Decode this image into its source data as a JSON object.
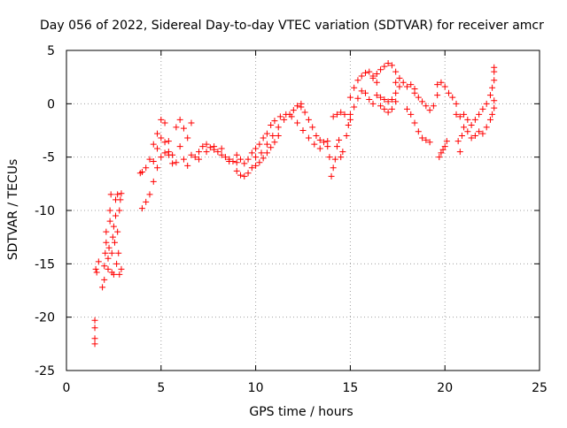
{
  "chart_data": {
    "type": "scatter",
    "title": "Day 056 of 2022, Sidereal Day-to-day VTEC variation (SDTVAR) for receiver amcr",
    "xlabel": "GPS time / hours",
    "ylabel": "SDTVAR / TECUs",
    "xlim": [
      0,
      25
    ],
    "ylim": [
      -25,
      5
    ],
    "xticks": [
      0,
      5,
      10,
      15,
      20,
      25
    ],
    "yticks": [
      -25,
      -20,
      -15,
      -10,
      -5,
      0,
      5
    ],
    "grid": true,
    "marker": "plus",
    "color": "#ff0000",
    "series": [
      {
        "name": "SDTVAR",
        "points": [
          [
            1.5,
            -22.5
          ],
          [
            1.5,
            -22.0
          ],
          [
            1.5,
            -21.0
          ],
          [
            1.5,
            -20.3
          ],
          [
            1.55,
            -15.5
          ],
          [
            1.6,
            -15.8
          ],
          [
            1.7,
            -14.8
          ],
          [
            1.9,
            -17.2
          ],
          [
            2.0,
            -16.5
          ],
          [
            2.0,
            -15.2
          ],
          [
            2.05,
            -14.0
          ],
          [
            2.1,
            -13.0
          ],
          [
            2.1,
            -12.0
          ],
          [
            2.2,
            -15.5
          ],
          [
            2.2,
            -14.5
          ],
          [
            2.25,
            -13.5
          ],
          [
            2.3,
            -11.0
          ],
          [
            2.3,
            -10.0
          ],
          [
            2.35,
            -8.5
          ],
          [
            2.4,
            -15.8
          ],
          [
            2.4,
            -14.0
          ],
          [
            2.45,
            -12.5
          ],
          [
            2.5,
            -11.5
          ],
          [
            2.5,
            -16.0
          ],
          [
            2.55,
            -13.0
          ],
          [
            2.6,
            -10.5
          ],
          [
            2.6,
            -9.0
          ],
          [
            2.65,
            -15.0
          ],
          [
            2.7,
            -12.0
          ],
          [
            2.7,
            -8.5
          ],
          [
            2.75,
            -14.0
          ],
          [
            2.8,
            -16.0
          ],
          [
            2.8,
            -10.0
          ],
          [
            2.85,
            -9.0
          ],
          [
            2.9,
            -15.5
          ],
          [
            2.9,
            -8.4
          ],
          [
            3.9,
            -6.5
          ],
          [
            4.0,
            -9.8
          ],
          [
            4.2,
            -9.2
          ],
          [
            4.4,
            -8.5
          ],
          [
            4.6,
            -7.3
          ],
          [
            4.8,
            -6.0
          ],
          [
            5.0,
            -5.0
          ],
          [
            5.2,
            -4.6
          ],
          [
            5.4,
            -4.8
          ],
          [
            5.6,
            -5.6
          ],
          [
            5.8,
            -5.5
          ],
          [
            4.0,
            -6.4
          ],
          [
            4.2,
            -6.0
          ],
          [
            4.4,
            -5.2
          ],
          [
            4.6,
            -3.8
          ],
          [
            4.8,
            -2.8
          ],
          [
            5.0,
            -1.5
          ],
          [
            5.2,
            -1.8
          ],
          [
            5.4,
            -3.5
          ],
          [
            5.6,
            -4.8
          ],
          [
            4.6,
            -5.4
          ],
          [
            4.8,
            -4.2
          ],
          [
            5.0,
            -3.2
          ],
          [
            5.2,
            -3.6
          ],
          [
            5.4,
            -4.5
          ],
          [
            5.8,
            -2.2
          ],
          [
            6.0,
            -1.5
          ],
          [
            6.2,
            -2.3
          ],
          [
            6.4,
            -3.2
          ],
          [
            6.6,
            -1.8
          ],
          [
            6.0,
            -4.0
          ],
          [
            6.2,
            -5.2
          ],
          [
            6.4,
            -5.8
          ],
          [
            6.6,
            -4.8
          ],
          [
            6.8,
            -5.0
          ],
          [
            7.0,
            -4.5
          ],
          [
            7.2,
            -4.0
          ],
          [
            7.4,
            -3.8
          ],
          [
            7.6,
            -4.1
          ],
          [
            7.8,
            -4.3
          ],
          [
            8.0,
            -4.5
          ],
          [
            8.2,
            -4.8
          ],
          [
            8.4,
            -5.0
          ],
          [
            8.6,
            -5.2
          ],
          [
            8.8,
            -5.4
          ],
          [
            9.0,
            -5.5
          ],
          [
            7.0,
            -5.2
          ],
          [
            7.4,
            -4.5
          ],
          [
            7.8,
            -4.0
          ],
          [
            8.2,
            -4.2
          ],
          [
            8.6,
            -5.4
          ],
          [
            9.0,
            -6.3
          ],
          [
            9.2,
            -6.7
          ],
          [
            9.4,
            -6.8
          ],
          [
            9.6,
            -6.5
          ],
          [
            9.8,
            -6.0
          ],
          [
            9.0,
            -4.8
          ],
          [
            9.2,
            -5.2
          ],
          [
            9.4,
            -5.6
          ],
          [
            9.6,
            -5.2
          ],
          [
            9.8,
            -4.6
          ],
          [
            10.0,
            -4.2
          ],
          [
            10.2,
            -3.8
          ],
          [
            10.4,
            -3.2
          ],
          [
            10.6,
            -2.8
          ],
          [
            10.8,
            -2.0
          ],
          [
            10.0,
            -5.8
          ],
          [
            10.2,
            -5.5
          ],
          [
            10.4,
            -5.1
          ],
          [
            10.6,
            -4.6
          ],
          [
            10.8,
            -4.1
          ],
          [
            11.0,
            -3.6
          ],
          [
            11.2,
            -3.0
          ],
          [
            10.0,
            -5.0
          ],
          [
            10.3,
            -4.6
          ],
          [
            10.6,
            -3.8
          ],
          [
            10.9,
            -3.0
          ],
          [
            11.2,
            -2.2
          ],
          [
            11.5,
            -1.5
          ],
          [
            11.8,
            -1.0
          ],
          [
            12.0,
            -0.6
          ],
          [
            12.2,
            -0.2
          ],
          [
            12.4,
            0.0
          ],
          [
            11.0,
            -1.6
          ],
          [
            11.3,
            -1.2
          ],
          [
            11.6,
            -1.0
          ],
          [
            11.9,
            -1.2
          ],
          [
            12.2,
            -1.8
          ],
          [
            12.5,
            -2.5
          ],
          [
            12.8,
            -3.2
          ],
          [
            13.1,
            -3.8
          ],
          [
            13.4,
            -4.2
          ],
          [
            12.4,
            -0.3
          ],
          [
            12.6,
            -0.8
          ],
          [
            12.8,
            -1.5
          ],
          [
            13.0,
            -2.2
          ],
          [
            13.2,
            -3.0
          ],
          [
            13.4,
            -3.4
          ],
          [
            13.6,
            -3.6
          ],
          [
            13.8,
            -3.5
          ],
          [
            13.8,
            -4.0
          ],
          [
            13.9,
            -5.0
          ],
          [
            14.0,
            -6.8
          ],
          [
            14.1,
            -6.0
          ],
          [
            14.2,
            -5.2
          ],
          [
            14.3,
            -4.0
          ],
          [
            14.4,
            -3.4
          ],
          [
            14.5,
            -5.0
          ],
          [
            14.6,
            -4.5
          ],
          [
            14.1,
            -1.2
          ],
          [
            14.3,
            -1.0
          ],
          [
            14.5,
            -0.8
          ],
          [
            14.7,
            -1.0
          ],
          [
            14.8,
            -3.0
          ],
          [
            14.9,
            -2.0
          ],
          [
            15.0,
            -1.5
          ],
          [
            15.0,
            -1.0
          ],
          [
            15.2,
            -0.3
          ],
          [
            15.4,
            0.5
          ],
          [
            15.6,
            1.2
          ],
          [
            15.8,
            1.0
          ],
          [
            16.0,
            0.4
          ],
          [
            16.2,
            0.0
          ],
          [
            15.0,
            0.6
          ],
          [
            15.2,
            1.5
          ],
          [
            15.4,
            2.2
          ],
          [
            15.6,
            2.6
          ],
          [
            15.8,
            2.9
          ],
          [
            16.0,
            3.0
          ],
          [
            16.2,
            2.6
          ],
          [
            16.4,
            2.0
          ],
          [
            16.2,
            2.4
          ],
          [
            16.4,
            2.8
          ],
          [
            16.6,
            3.2
          ],
          [
            16.8,
            3.5
          ],
          [
            17.0,
            3.8
          ],
          [
            17.2,
            3.6
          ],
          [
            17.4,
            3.0
          ],
          [
            16.4,
            0.8
          ],
          [
            16.6,
            0.6
          ],
          [
            16.8,
            0.4
          ],
          [
            17.0,
            0.2
          ],
          [
            17.2,
            0.4
          ],
          [
            17.4,
            1.0
          ],
          [
            17.6,
            1.6
          ],
          [
            16.6,
            -0.2
          ],
          [
            16.8,
            -0.5
          ],
          [
            17.0,
            -0.8
          ],
          [
            17.2,
            -0.5
          ],
          [
            17.4,
            0.2
          ],
          [
            17.4,
            2.0
          ],
          [
            17.6,
            2.4
          ],
          [
            17.8,
            2.0
          ],
          [
            18.0,
            1.6
          ],
          [
            18.2,
            1.8
          ],
          [
            18.4,
            1.4
          ],
          [
            18.0,
            -0.5
          ],
          [
            18.2,
            -1.0
          ],
          [
            18.4,
            -1.8
          ],
          [
            18.6,
            -2.6
          ],
          [
            18.8,
            -3.2
          ],
          [
            19.0,
            -3.4
          ],
          [
            19.2,
            -3.6
          ],
          [
            18.4,
            1.0
          ],
          [
            18.6,
            0.6
          ],
          [
            18.8,
            0.2
          ],
          [
            19.0,
            -0.2
          ],
          [
            19.2,
            -0.6
          ],
          [
            19.4,
            -0.2
          ],
          [
            19.6,
            0.8
          ],
          [
            19.6,
            1.8
          ],
          [
            19.8,
            2.0
          ],
          [
            20.0,
            1.6
          ],
          [
            20.2,
            1.0
          ],
          [
            20.4,
            0.6
          ],
          [
            20.6,
            0.0
          ],
          [
            19.7,
            -5.0
          ],
          [
            19.8,
            -4.6
          ],
          [
            19.9,
            -4.3
          ],
          [
            20.0,
            -4.0
          ],
          [
            20.1,
            -3.5
          ],
          [
            20.6,
            -1.0
          ],
          [
            20.8,
            -1.2
          ],
          [
            21.0,
            -1.0
          ],
          [
            21.2,
            -1.5
          ],
          [
            21.4,
            -2.0
          ],
          [
            20.7,
            -3.5
          ],
          [
            20.8,
            -4.5
          ],
          [
            20.9,
            -3.0
          ],
          [
            21.0,
            -2.2
          ],
          [
            21.2,
            -2.6
          ],
          [
            21.4,
            -3.2
          ],
          [
            21.6,
            -3.0
          ],
          [
            21.8,
            -2.6
          ],
          [
            21.6,
            -1.5
          ],
          [
            21.8,
            -1.0
          ],
          [
            22.0,
            -0.5
          ],
          [
            22.2,
            0.0
          ],
          [
            22.4,
            0.8
          ],
          [
            22.5,
            1.5
          ],
          [
            22.6,
            2.2
          ],
          [
            22.6,
            3.0
          ],
          [
            22.6,
            3.4
          ],
          [
            22.0,
            -2.8
          ],
          [
            22.2,
            -2.2
          ],
          [
            22.4,
            -1.5
          ],
          [
            22.5,
            -1.0
          ],
          [
            22.6,
            -0.4
          ],
          [
            22.6,
            0.3
          ]
        ]
      }
    ]
  }
}
